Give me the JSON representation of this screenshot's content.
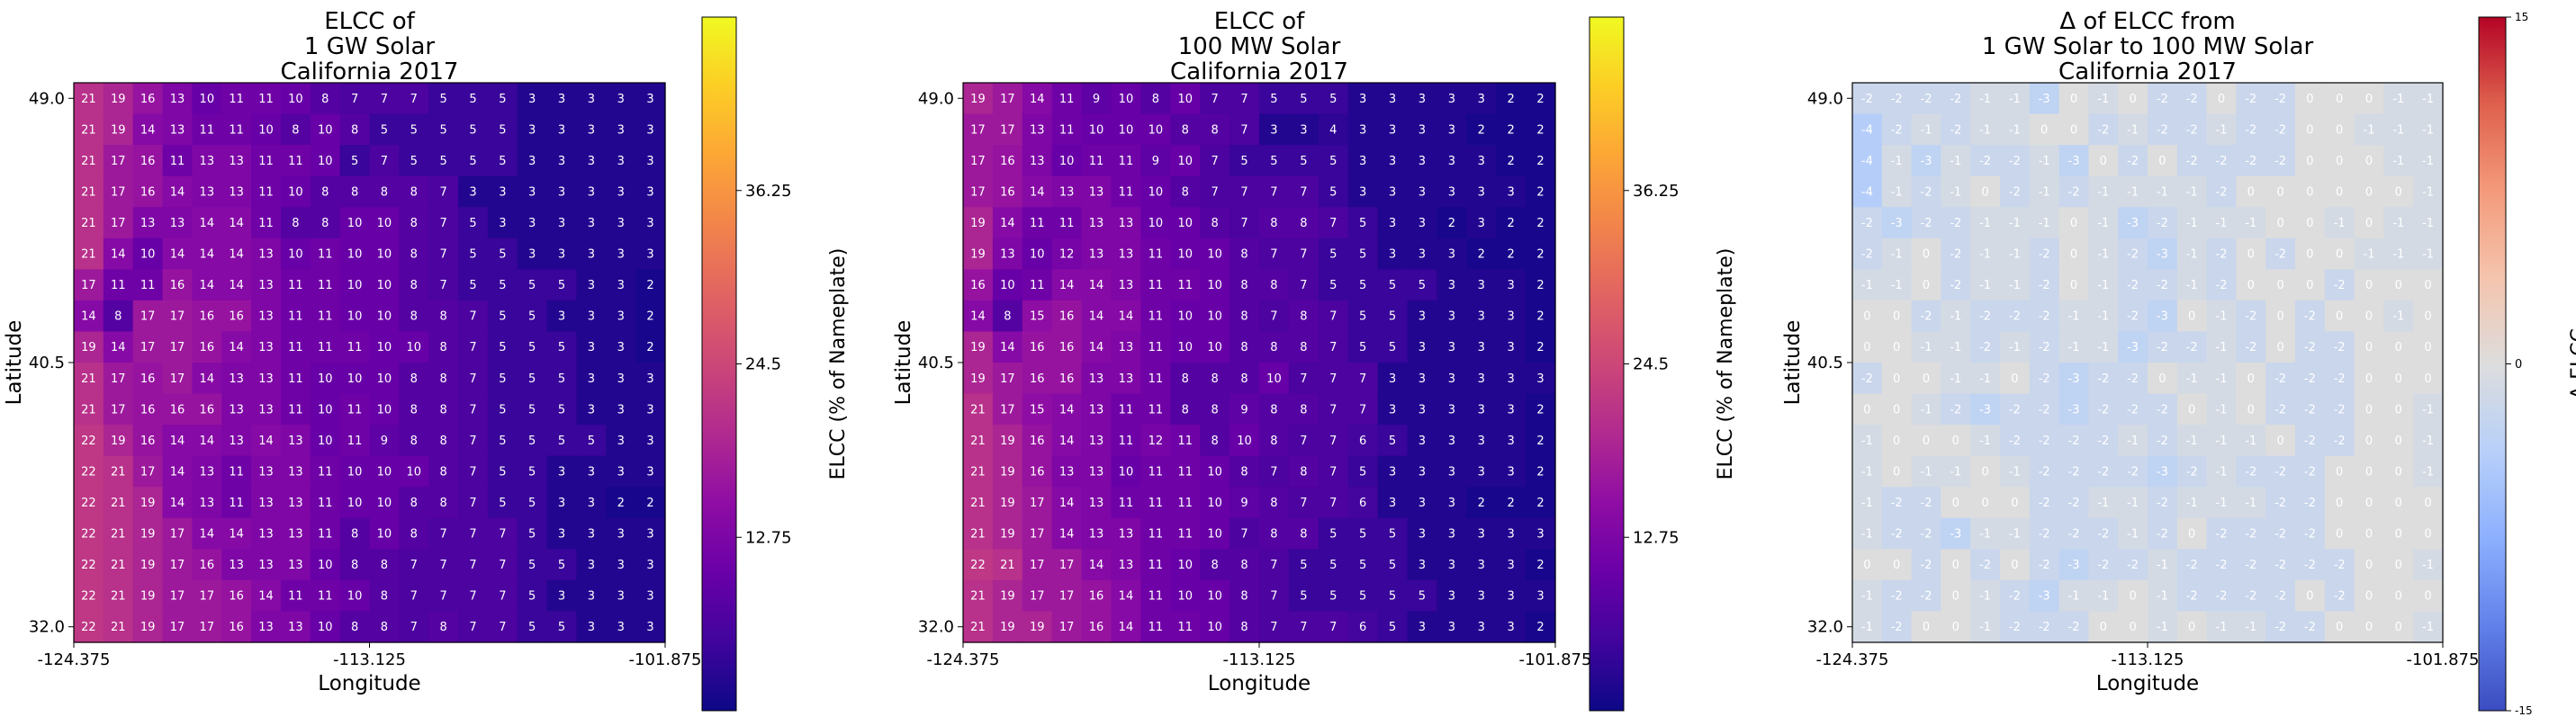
{
  "chart_data": [
    {
      "type": "heatmap",
      "title": [
        "ELCC of",
        "1 GW Solar",
        "California 2017"
      ],
      "xlabel": "Longitude",
      "ylabel": "Latitude",
      "xticks": [
        "-124.375",
        "-113.125",
        "-101.875"
      ],
      "yticks": [
        "49.0",
        "40.5",
        "32.0"
      ],
      "colorbar": {
        "label": "ELCC (% of Nameplate)",
        "ticks": [
          "12.75",
          "24.5",
          "36.25"
        ],
        "range": [
          1,
          48
        ],
        "colormap": "plasma"
      },
      "rows": [
        [
          21,
          19,
          16,
          13,
          10,
          11,
          11,
          10,
          8,
          7,
          7,
          7,
          5,
          5,
          5,
          3,
          3,
          3,
          3,
          3
        ],
        [
          21,
          19,
          14,
          13,
          11,
          11,
          10,
          8,
          10,
          8,
          5,
          5,
          5,
          5,
          5,
          3,
          3,
          3,
          3,
          3
        ],
        [
          21,
          17,
          16,
          11,
          13,
          13,
          11,
          11,
          10,
          5,
          7,
          5,
          5,
          5,
          5,
          3,
          3,
          3,
          3,
          3
        ],
        [
          21,
          17,
          16,
          14,
          13,
          13,
          11,
          10,
          8,
          8,
          8,
          8,
          7,
          3,
          3,
          3,
          3,
          3,
          3,
          3
        ],
        [
          21,
          17,
          13,
          13,
          14,
          14,
          11,
          8,
          8,
          10,
          10,
          8,
          7,
          5,
          3,
          3,
          3,
          3,
          3,
          3
        ],
        [
          21,
          14,
          10,
          14,
          14,
          14,
          13,
          10,
          11,
          10,
          10,
          8,
          7,
          5,
          5,
          3,
          3,
          3,
          3,
          3
        ],
        [
          17,
          11,
          11,
          16,
          14,
          14,
          13,
          11,
          11,
          10,
          10,
          8,
          7,
          5,
          5,
          5,
          5,
          3,
          3,
          2
        ],
        [
          14,
          8,
          17,
          17,
          16,
          16,
          13,
          11,
          11,
          10,
          10,
          8,
          8,
          7,
          5,
          5,
          3,
          3,
          3,
          2
        ],
        [
          19,
          14,
          17,
          17,
          16,
          14,
          13,
          11,
          11,
          11,
          10,
          10,
          8,
          7,
          5,
          5,
          5,
          3,
          3,
          2
        ],
        [
          21,
          17,
          16,
          17,
          14,
          13,
          13,
          11,
          10,
          10,
          10,
          8,
          8,
          7,
          5,
          5,
          5,
          3,
          3,
          3
        ],
        [
          21,
          17,
          16,
          16,
          16,
          13,
          13,
          11,
          10,
          11,
          10,
          8,
          8,
          7,
          5,
          5,
          5,
          3,
          3,
          3
        ],
        [
          22,
          19,
          16,
          14,
          14,
          13,
          14,
          13,
          10,
          11,
          9,
          8,
          8,
          7,
          5,
          5,
          5,
          5,
          3,
          3
        ],
        [
          22,
          21,
          17,
          14,
          13,
          11,
          13,
          13,
          11,
          10,
          10,
          10,
          8,
          7,
          5,
          5,
          3,
          3,
          3,
          3
        ],
        [
          22,
          21,
          19,
          14,
          13,
          11,
          13,
          13,
          11,
          10,
          10,
          8,
          8,
          7,
          5,
          5,
          3,
          3,
          2,
          2
        ],
        [
          22,
          21,
          19,
          17,
          14,
          14,
          13,
          13,
          11,
          8,
          10,
          8,
          7,
          7,
          7,
          5,
          3,
          3,
          3,
          3
        ],
        [
          22,
          21,
          19,
          17,
          16,
          13,
          13,
          13,
          10,
          8,
          8,
          7,
          7,
          7,
          7,
          5,
          5,
          3,
          3,
          3
        ],
        [
          22,
          21,
          19,
          17,
          17,
          16,
          14,
          11,
          11,
          10,
          8,
          7,
          7,
          7,
          7,
          5,
          3,
          3,
          3,
          3
        ],
        [
          22,
          21,
          19,
          17,
          17,
          16,
          13,
          13,
          10,
          8,
          8,
          7,
          8,
          7,
          7,
          5,
          5,
          3,
          3,
          3
        ]
      ]
    },
    {
      "type": "heatmap",
      "title": [
        "ELCC of",
        "100 MW Solar",
        "California 2017"
      ],
      "xlabel": "Longitude",
      "ylabel": "Latitude",
      "xticks": [
        "-124.375",
        "-113.125",
        "-101.875"
      ],
      "yticks": [
        "49.0",
        "40.5",
        "32.0"
      ],
      "colorbar": {
        "label": "ELCC (% of Nameplate)",
        "ticks": [
          "12.75",
          "24.5",
          "36.25"
        ],
        "range": [
          1,
          48
        ],
        "colormap": "plasma"
      },
      "rows": [
        [
          19,
          17,
          14,
          11,
          9,
          10,
          8,
          10,
          7,
          7,
          5,
          5,
          5,
          3,
          3,
          3,
          3,
          3,
          2,
          2
        ],
        [
          17,
          17,
          13,
          11,
          10,
          10,
          10,
          8,
          8,
          7,
          3,
          3,
          4,
          3,
          3,
          3,
          3,
          2,
          2,
          2
        ],
        [
          17,
          16,
          13,
          10,
          11,
          11,
          9,
          10,
          7,
          5,
          5,
          5,
          5,
          3,
          3,
          3,
          3,
          3,
          2,
          2
        ],
        [
          17,
          16,
          14,
          13,
          13,
          11,
          10,
          8,
          7,
          7,
          7,
          7,
          5,
          3,
          3,
          3,
          3,
          3,
          3,
          2
        ],
        [
          19,
          14,
          11,
          11,
          13,
          13,
          10,
          10,
          8,
          7,
          8,
          8,
          7,
          5,
          3,
          3,
          2,
          3,
          2,
          2
        ],
        [
          19,
          13,
          10,
          12,
          13,
          13,
          11,
          10,
          10,
          8,
          7,
          7,
          5,
          5,
          3,
          3,
          3,
          2,
          2,
          2
        ],
        [
          16,
          10,
          11,
          14,
          14,
          13,
          11,
          11,
          10,
          8,
          8,
          7,
          5,
          5,
          5,
          5,
          3,
          3,
          3,
          2
        ],
        [
          14,
          8,
          15,
          16,
          14,
          14,
          11,
          10,
          10,
          8,
          7,
          8,
          7,
          5,
          5,
          3,
          3,
          3,
          3,
          2
        ],
        [
          19,
          14,
          16,
          16,
          14,
          13,
          11,
          10,
          10,
          8,
          8,
          8,
          7,
          5,
          5,
          3,
          3,
          3,
          3,
          2
        ],
        [
          19,
          17,
          16,
          16,
          13,
          13,
          11,
          8,
          8,
          8,
          10,
          7,
          7,
          7,
          3,
          3,
          3,
          3,
          3,
          3
        ],
        [
          21,
          17,
          15,
          14,
          13,
          11,
          11,
          8,
          8,
          9,
          8,
          8,
          7,
          7,
          3,
          3,
          3,
          3,
          3,
          2
        ],
        [
          21,
          19,
          16,
          14,
          13,
          11,
          12,
          11,
          8,
          10,
          8,
          7,
          7,
          6,
          5,
          3,
          3,
          3,
          3,
          2
        ],
        [
          21,
          19,
          16,
          13,
          13,
          10,
          11,
          11,
          10,
          8,
          7,
          8,
          7,
          5,
          3,
          3,
          3,
          3,
          3,
          2
        ],
        [
          21,
          19,
          17,
          14,
          13,
          11,
          11,
          11,
          10,
          9,
          8,
          7,
          7,
          6,
          3,
          3,
          3,
          2,
          2,
          2
        ],
        [
          21,
          19,
          17,
          14,
          13,
          13,
          11,
          11,
          10,
          7,
          8,
          8,
          5,
          5,
          5,
          3,
          3,
          3,
          3,
          3
        ],
        [
          22,
          21,
          17,
          17,
          14,
          13,
          11,
          10,
          8,
          8,
          7,
          5,
          5,
          5,
          5,
          3,
          3,
          3,
          3,
          2
        ],
        [
          21,
          19,
          17,
          17,
          16,
          14,
          11,
          10,
          10,
          8,
          7,
          5,
          5,
          5,
          5,
          5,
          3,
          3,
          3,
          3
        ],
        [
          21,
          19,
          19,
          17,
          16,
          14,
          11,
          11,
          10,
          8,
          7,
          7,
          7,
          6,
          5,
          3,
          3,
          3,
          3,
          2
        ]
      ]
    },
    {
      "type": "heatmap",
      "title": [
        "Δ of ELCC from",
        "1 GW Solar to 100 MW Solar",
        "California 2017"
      ],
      "xlabel": "Longitude",
      "ylabel": "Latitude",
      "xticks": [
        "-124.375",
        "-113.125",
        "-101.875"
      ],
      "yticks": [
        "49.0",
        "40.5",
        "32.0"
      ],
      "colorbar": {
        "label": "Δ ELCC",
        "ticks": [
          "-15",
          "0",
          "15"
        ],
        "range": [
          -15,
          15
        ],
        "colormap": "coolwarm"
      },
      "rows": [
        [
          -2,
          -2,
          -2,
          -2,
          -1,
          -1,
          -3,
          0,
          -1,
          0,
          -2,
          -2,
          0,
          -2,
          -2,
          0,
          0,
          0,
          -1,
          -1
        ],
        [
          -4,
          -2,
          -1,
          -2,
          -1,
          -1,
          0,
          0,
          -2,
          -1,
          -2,
          -2,
          -1,
          -2,
          -2,
          0,
          0,
          -1,
          -1,
          -1
        ],
        [
          -4,
          -1,
          -3,
          -1,
          -2,
          -2,
          -1,
          -3,
          0,
          -2,
          0,
          -2,
          -2,
          -2,
          -2,
          0,
          0,
          0,
          -1,
          -1
        ],
        [
          -4,
          -1,
          -2,
          -1,
          0,
          -2,
          -1,
          -2,
          -1,
          -1,
          -1,
          -1,
          -2,
          0,
          0,
          0,
          0,
          0,
          0,
          -1
        ],
        [
          -2,
          -3,
          -2,
          -2,
          -1,
          -1,
          -1,
          0,
          -1,
          -3,
          -2,
          -1,
          -1,
          -1,
          0,
          0,
          -1,
          0,
          -1,
          -1
        ],
        [
          -2,
          -1,
          0,
          -2,
          -1,
          -1,
          -2,
          0,
          -1,
          -2,
          -3,
          -1,
          -2,
          0,
          -2,
          0,
          0,
          -1,
          -1,
          -1
        ],
        [
          -1,
          -1,
          0,
          -2,
          -1,
          -1,
          -2,
          0,
          -1,
          -2,
          -2,
          -1,
          -2,
          0,
          0,
          0,
          -2,
          0,
          0,
          0
        ],
        [
          0,
          0,
          -2,
          -1,
          -2,
          -2,
          -2,
          -1,
          -1,
          -2,
          -3,
          0,
          -1,
          -2,
          0,
          -2,
          0,
          0,
          -1,
          0
        ],
        [
          0,
          0,
          -1,
          -1,
          -2,
          -1,
          -2,
          -1,
          -1,
          -3,
          -2,
          -2,
          -1,
          -2,
          0,
          -2,
          -2,
          0,
          0,
          0
        ],
        [
          -2,
          0,
          0,
          -1,
          -1,
          0,
          -2,
          -3,
          -2,
          -2,
          0,
          -1,
          -1,
          0,
          -2,
          -2,
          -2,
          0,
          0,
          0
        ],
        [
          0,
          0,
          -1,
          -2,
          -3,
          -2,
          -2,
          -3,
          -2,
          -2,
          -2,
          0,
          -1,
          0,
          -2,
          -2,
          -2,
          0,
          0,
          -1
        ],
        [
          -1,
          0,
          0,
          0,
          -1,
          -2,
          -2,
          -2,
          -2,
          -1,
          -2,
          -1,
          -1,
          -1,
          0,
          -2,
          -2,
          0,
          0,
          -1
        ],
        [
          -1,
          0,
          -1,
          -1,
          0,
          -1,
          -2,
          -2,
          -2,
          -2,
          -3,
          -2,
          -1,
          -2,
          -2,
          -2,
          0,
          0,
          0,
          -1
        ],
        [
          -1,
          -2,
          -2,
          0,
          0,
          0,
          -2,
          -2,
          -1,
          -1,
          -2,
          -1,
          -1,
          -1,
          -2,
          -2,
          0,
          0,
          0,
          0
        ],
        [
          -1,
          -2,
          -2,
          -3,
          -1,
          -1,
          -2,
          -2,
          -2,
          -1,
          -2,
          0,
          -2,
          -2,
          -2,
          -2,
          0,
          0,
          0,
          0
        ],
        [
          0,
          0,
          -2,
          0,
          -2,
          0,
          -2,
          -3,
          -2,
          -2,
          -1,
          -2,
          -2,
          -2,
          -2,
          -2,
          -2,
          0,
          0,
          -1
        ],
        [
          -1,
          -2,
          -2,
          0,
          -1,
          -2,
          -3,
          -1,
          -1,
          0,
          -1,
          -2,
          -2,
          -2,
          -2,
          0,
          -2,
          0,
          0,
          0
        ],
        [
          -1,
          -2,
          0,
          0,
          -1,
          -2,
          -2,
          -2,
          0,
          0,
          -1,
          0,
          -1,
          -1,
          -2,
          -2,
          0,
          0,
          0,
          -1
        ]
      ]
    }
  ]
}
